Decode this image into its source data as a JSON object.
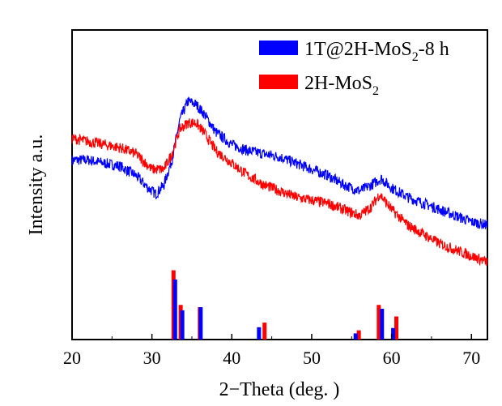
{
  "chart_data": {
    "type": "line",
    "xlabel": "2−Theta (deg. )",
    "ylabel": "Intensity a.u.",
    "xlim": [
      20,
      72
    ],
    "x_ticks": [
      20,
      30,
      40,
      50,
      60,
      70
    ],
    "y_ticks_shown": false,
    "grid": false,
    "legend_position": "top-right",
    "series": [
      {
        "name": "1T@2H-MoS2-8 h",
        "color": "#0000ff",
        "profile": [
          [
            20,
            0.58
          ],
          [
            22,
            0.58
          ],
          [
            24,
            0.57
          ],
          [
            26,
            0.56
          ],
          [
            28,
            0.53
          ],
          [
            29.5,
            0.49
          ],
          [
            30.5,
            0.47
          ],
          [
            31.5,
            0.5
          ],
          [
            32.5,
            0.58
          ],
          [
            33.5,
            0.71
          ],
          [
            34.5,
            0.77
          ],
          [
            35.5,
            0.76
          ],
          [
            36.5,
            0.73
          ],
          [
            38,
            0.67
          ],
          [
            40,
            0.63
          ],
          [
            42,
            0.61
          ],
          [
            44,
            0.6
          ],
          [
            46,
            0.59
          ],
          [
            48,
            0.57
          ],
          [
            50,
            0.55
          ],
          [
            52,
            0.53
          ],
          [
            54,
            0.5
          ],
          [
            56,
            0.48
          ],
          [
            57.5,
            0.5
          ],
          [
            58.7,
            0.52
          ],
          [
            60,
            0.49
          ],
          [
            62,
            0.46
          ],
          [
            64,
            0.44
          ],
          [
            66,
            0.42
          ],
          [
            68,
            0.4
          ],
          [
            70,
            0.38
          ],
          [
            72,
            0.37
          ]
        ]
      },
      {
        "name": "2H-MoS2",
        "color": "#ff0000",
        "profile": [
          [
            20,
            0.65
          ],
          [
            22,
            0.64
          ],
          [
            24,
            0.63
          ],
          [
            26,
            0.62
          ],
          [
            28,
            0.6
          ],
          [
            30,
            0.55
          ],
          [
            31.5,
            0.55
          ],
          [
            32.5,
            0.6
          ],
          [
            33.5,
            0.68
          ],
          [
            34.5,
            0.7
          ],
          [
            35.5,
            0.7
          ],
          [
            36.5,
            0.67
          ],
          [
            38,
            0.61
          ],
          [
            40,
            0.57
          ],
          [
            42,
            0.53
          ],
          [
            44,
            0.5
          ],
          [
            46,
            0.48
          ],
          [
            48,
            0.46
          ],
          [
            50,
            0.45
          ],
          [
            52,
            0.44
          ],
          [
            54,
            0.42
          ],
          [
            56,
            0.4
          ],
          [
            57.5,
            0.43
          ],
          [
            58.5,
            0.47
          ],
          [
            60,
            0.42
          ],
          [
            62,
            0.37
          ],
          [
            64,
            0.34
          ],
          [
            66,
            0.31
          ],
          [
            68,
            0.29
          ],
          [
            70,
            0.27
          ],
          [
            72,
            0.25
          ]
        ]
      }
    ],
    "reference_bars": {
      "2H-MoS2": [
        [
          32.7,
          0.9
        ],
        [
          33.6,
          0.45
        ],
        [
          36.0,
          0.42
        ],
        [
          44.1,
          0.22
        ],
        [
          55.9,
          0.12
        ],
        [
          58.4,
          0.45
        ],
        [
          60.6,
          0.3
        ]
      ],
      "1T@2H-MoS2-8 h": [
        [
          32.9,
          0.78
        ],
        [
          33.8,
          0.38
        ],
        [
          36.1,
          0.42
        ],
        [
          43.4,
          0.16
        ],
        [
          55.5,
          0.08
        ],
        [
          58.8,
          0.4
        ],
        [
          60.2,
          0.15
        ]
      ]
    },
    "legend": [
      {
        "label": "1T@2H-MoS",
        "sub": "2",
        "suffix": "-8 h",
        "color": "#0000ff"
      },
      {
        "label": "2H-MoS",
        "sub": "2",
        "suffix": "",
        "color": "#ff0000"
      }
    ]
  }
}
